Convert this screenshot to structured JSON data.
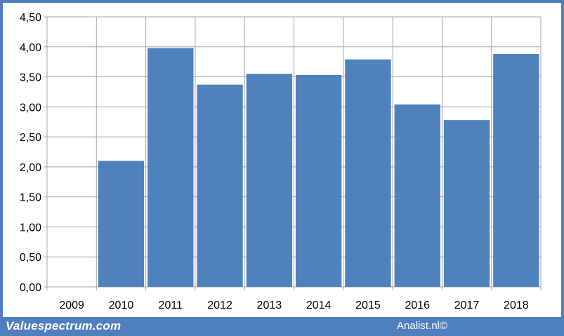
{
  "chart_data": {
    "type": "bar",
    "categories": [
      "2009",
      "2010",
      "2011",
      "2012",
      "2013",
      "2014",
      "2015",
      "2016",
      "2017",
      "2018"
    ],
    "values": [
      0,
      2.1,
      3.98,
      3.37,
      3.55,
      3.53,
      3.79,
      3.04,
      2.78,
      3.88
    ],
    "ylim": [
      0,
      4.5
    ],
    "ytick_step": 0.5,
    "ytick_labels": [
      "0,00",
      "0,50",
      "1,00",
      "1,50",
      "2,00",
      "2,50",
      "3,00",
      "3,50",
      "4,00",
      "4,50"
    ],
    "grid": true,
    "bar_color": "#4f81bd",
    "grid_color": "#a6a6a6"
  },
  "footer": {
    "left_label": "Valuespectrum.com",
    "right_label": "Analist.nl©"
  },
  "colors": {
    "frame": "#4f7fbf",
    "panel": "#ffffff"
  }
}
